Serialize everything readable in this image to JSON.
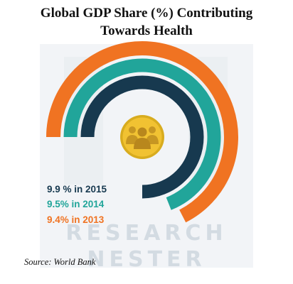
{
  "title_line1": "Global GDP Share (%) Contributing",
  "title_line2": "Towards Health",
  "watermark": {
    "line1": "RESEARCH",
    "line2": "NESTER"
  },
  "source": "Source: World Bank",
  "center_icon": "people-group-icon",
  "chart_data": {
    "type": "radial-bar",
    "title": "Global GDP Share (%) Contributing Towards Health",
    "unit": "%",
    "series": [
      {
        "year": "2015",
        "value": 9.9,
        "label": "9.9 % in 2015",
        "color": "#17394f"
      },
      {
        "year": "2014",
        "value": 9.5,
        "label": "9.5% in 2014",
        "color": "#21a59a"
      },
      {
        "year": "2013",
        "value": 9.4,
        "label": "9.4% in 2013",
        "color": "#f07322"
      }
    ]
  }
}
